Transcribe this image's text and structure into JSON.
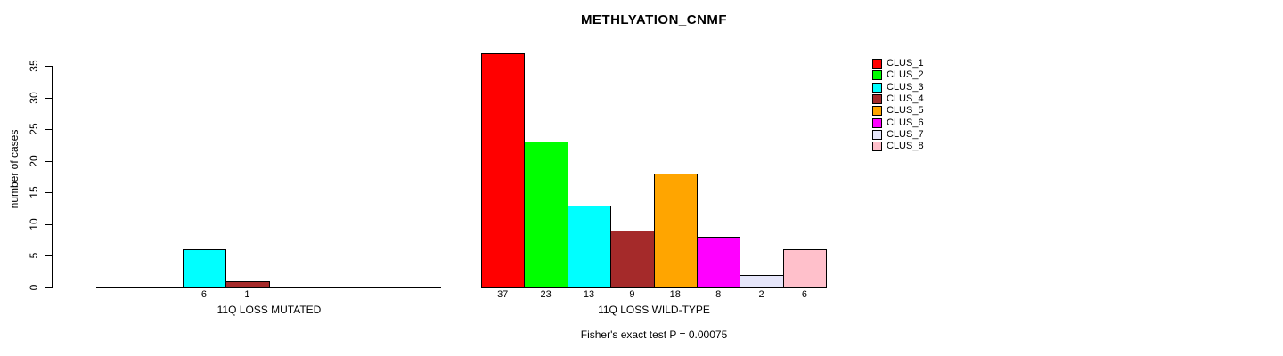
{
  "chart_data": {
    "type": "bar",
    "title": "METHLYATION_CNMF",
    "ylabel": "number of cases",
    "ylim": [
      0,
      35
    ],
    "yticks": [
      0,
      5,
      10,
      15,
      20,
      25,
      30,
      35
    ],
    "grid": false,
    "legend_position": "right",
    "categories": [
      "CLUS_1",
      "CLUS_2",
      "CLUS_3",
      "CLUS_4",
      "CLUS_5",
      "CLUS_6",
      "CLUS_7",
      "CLUS_8"
    ],
    "colors": [
      "#FF0000",
      "#00FF00",
      "#00FFFF",
      "#A52A2A",
      "#FFA500",
      "#FF00FF",
      "#E6E6FA",
      "#FFC0CB"
    ],
    "groups": [
      {
        "label": "11Q LOSS MUTATED",
        "values": [
          0,
          0,
          6,
          1,
          0,
          0,
          0,
          0
        ]
      },
      {
        "label": "11Q LOSS WILD-TYPE",
        "values": [
          37,
          23,
          13,
          9,
          18,
          8,
          2,
          6
        ]
      }
    ],
    "annotation": "Fisher's exact test P = 0.00075"
  }
}
